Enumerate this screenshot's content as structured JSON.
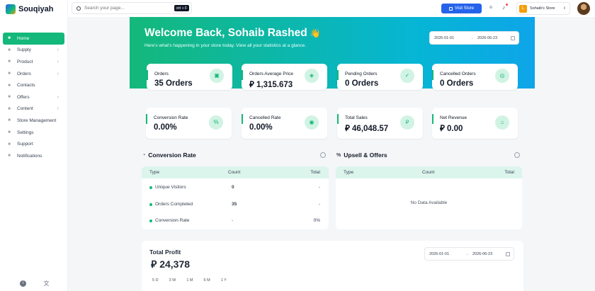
{
  "brand": {
    "name": "Souqiyah"
  },
  "sidebar": {
    "items": [
      {
        "label": "Home",
        "icon": "home-icon",
        "active": true,
        "chevron": false
      },
      {
        "label": "Supply",
        "icon": "folder-icon",
        "chevron": true
      },
      {
        "label": "Product",
        "icon": "box-icon",
        "chevron": true
      },
      {
        "label": "Orders",
        "icon": "cart-icon",
        "chevron": true
      },
      {
        "label": "Contacts",
        "icon": "users-icon",
        "chevron": false
      },
      {
        "label": "Offers",
        "icon": "tag-icon",
        "chevron": true
      },
      {
        "label": "Content",
        "icon": "file-icon",
        "chevron": true
      },
      {
        "label": "Store Management",
        "icon": "store-icon",
        "chevron": false
      },
      {
        "label": "Settings",
        "icon": "gear-icon",
        "chevron": false
      },
      {
        "label": "Support",
        "icon": "support-icon",
        "chevron": false
      },
      {
        "label": "Notifications",
        "icon": "bell-icon",
        "chevron": false
      }
    ],
    "chevron_glyph": "›"
  },
  "topbar": {
    "search_placeholder": "Search your page...",
    "shortcut": "ctrl + F",
    "visit_store": "Visit Store",
    "store_initial": "L",
    "store_name": "Sohaib's Store"
  },
  "hero": {
    "title": "Welcome Back, Sohaib Rashed",
    "wave": "👋",
    "subtitle": "Here's what's happening in your store today. View all your statistics at a glance.",
    "date_from": "2026-01-01",
    "date_to": "2026-06-23",
    "arrow": "→"
  },
  "stats": [
    {
      "label": "Orders",
      "value": "35 Orders",
      "icon": "▣"
    },
    {
      "label": "Orders Average Price",
      "value": "⃁ 1,315.673",
      "icon": "◈"
    },
    {
      "label": "Pending Orders",
      "value": "0 Orders",
      "icon": "✓"
    },
    {
      "label": "Cancelled Orders",
      "value": "0 Orders",
      "icon": "◎"
    },
    {
      "label": "Conversion Rate",
      "value": "0.00%",
      "icon": "%"
    },
    {
      "label": "Cancelled Rate",
      "value": "0.00%",
      "icon": "◉"
    },
    {
      "label": "Total Sales",
      "value": "⃁ 46,048.57",
      "icon": "⃁"
    },
    {
      "label": "Net Revenue",
      "value": "⃁ 0.00",
      "icon": "⌂"
    }
  ],
  "conversion": {
    "title": "Conversion Rate",
    "headers": {
      "type": "Type",
      "count": "Count",
      "total": "Total"
    },
    "rows": [
      {
        "type": "Unique Visitors",
        "count": "0",
        "total": "-"
      },
      {
        "type": "Orders Completed",
        "count": "35",
        "total": "-"
      },
      {
        "type": "Conversion Rate",
        "count": "-",
        "total": "0%"
      }
    ]
  },
  "upsell": {
    "title": "Upsell & Offers",
    "headers": {
      "type": "Type",
      "count": "Count",
      "total": "Total"
    },
    "empty": "No Data Available"
  },
  "profit": {
    "title": "Total Profit",
    "value": "⃁ 24,378",
    "date_from": "2026-01-01",
    "date_to": "2026-06-23",
    "periods": [
      "5 D",
      "3 W",
      "1 M",
      "6 M",
      "1 Y"
    ]
  }
}
